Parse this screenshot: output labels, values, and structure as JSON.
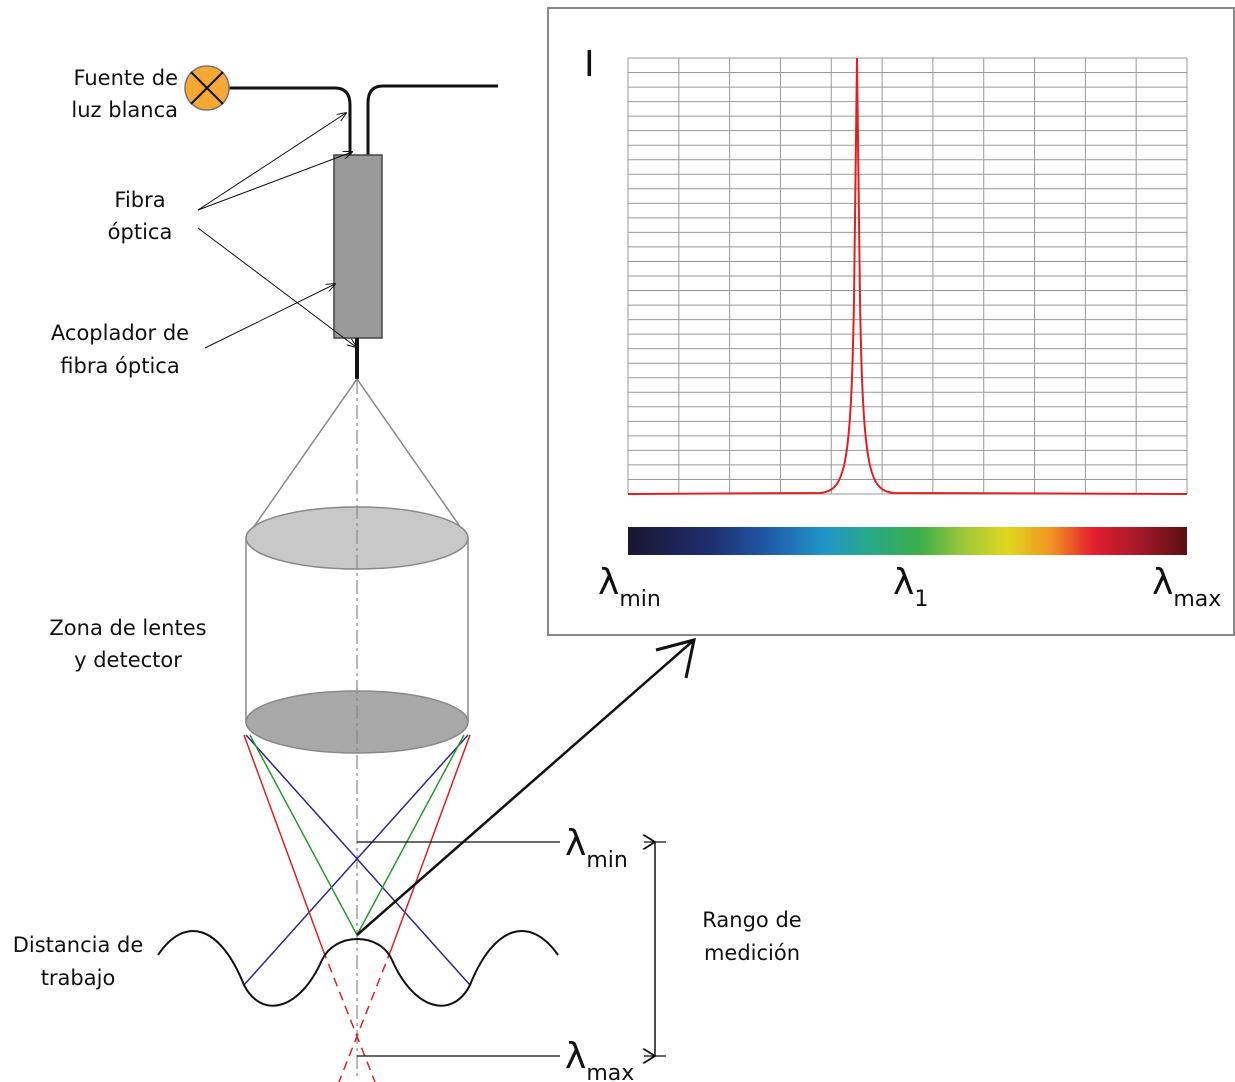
{
  "labels": {
    "light_source": [
      "Fuente de",
      "luz blanca"
    ],
    "fiber": [
      "Fibra",
      "óptica"
    ],
    "coupler": [
      "Acoplador de",
      "fibra óptica"
    ],
    "lens_zone": [
      "Zona de lentes",
      "y detector"
    ],
    "working_distance": [
      "Distancia de",
      "trabajo"
    ],
    "measuring_range": [
      "Rango de",
      "medición"
    ],
    "lambda_min": {
      "symbol": "λ",
      "sub": "min"
    },
    "lambda_max": {
      "symbol": "λ",
      "sub": "max"
    }
  },
  "spectrum": {
    "axis_label": "I",
    "lambda_min": {
      "symbol": "λ",
      "sub": "min"
    },
    "lambda_1": {
      "symbol": "λ",
      "sub": "1"
    },
    "lambda_max": {
      "symbol": "λ",
      "sub": "max"
    }
  }
}
